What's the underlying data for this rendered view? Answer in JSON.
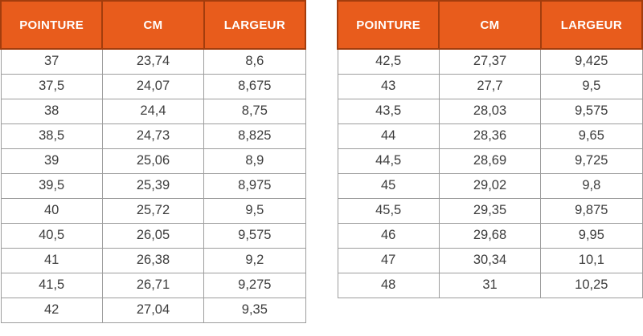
{
  "colors": {
    "header_bg": "#E85C1C",
    "header_border": "#A33D0D",
    "header_text": "#FFFFFF",
    "grid": "#9D9D9D",
    "body_text": "#3C3C3C",
    "page_bg": "#FFFFFF"
  },
  "chart_data": [
    {
      "type": "table",
      "title": "",
      "columns": [
        "POINTURE",
        "CM",
        "LARGEUR"
      ],
      "rows": [
        [
          "37",
          "23,74",
          "8,6"
        ],
        [
          "37,5",
          "24,07",
          "8,675"
        ],
        [
          "38",
          "24,4",
          "8,75"
        ],
        [
          "38,5",
          "24,73",
          "8,825"
        ],
        [
          "39",
          "25,06",
          "8,9"
        ],
        [
          "39,5",
          "25,39",
          "8,975"
        ],
        [
          "40",
          "25,72",
          "9,5"
        ],
        [
          "40,5",
          "26,05",
          "9,575"
        ],
        [
          "41",
          "26,38",
          "9,2"
        ],
        [
          "41,5",
          "26,71",
          "9,275"
        ],
        [
          "42",
          "27,04",
          "9,35"
        ]
      ]
    },
    {
      "type": "table",
      "title": "",
      "columns": [
        "POINTURE",
        "CM",
        "LARGEUR"
      ],
      "rows": [
        [
          "42,5",
          "27,37",
          "9,425"
        ],
        [
          "43",
          "27,7",
          "9,5"
        ],
        [
          "43,5",
          "28,03",
          "9,575"
        ],
        [
          "44",
          "28,36",
          "9,65"
        ],
        [
          "44,5",
          "28,69",
          "9,725"
        ],
        [
          "45",
          "29,02",
          "9,8"
        ],
        [
          "45,5",
          "29,35",
          "9,875"
        ],
        [
          "46",
          "29,68",
          "9,95"
        ],
        [
          "47",
          "30,34",
          "10,1"
        ],
        [
          "48",
          "31",
          "10,25"
        ]
      ]
    }
  ]
}
